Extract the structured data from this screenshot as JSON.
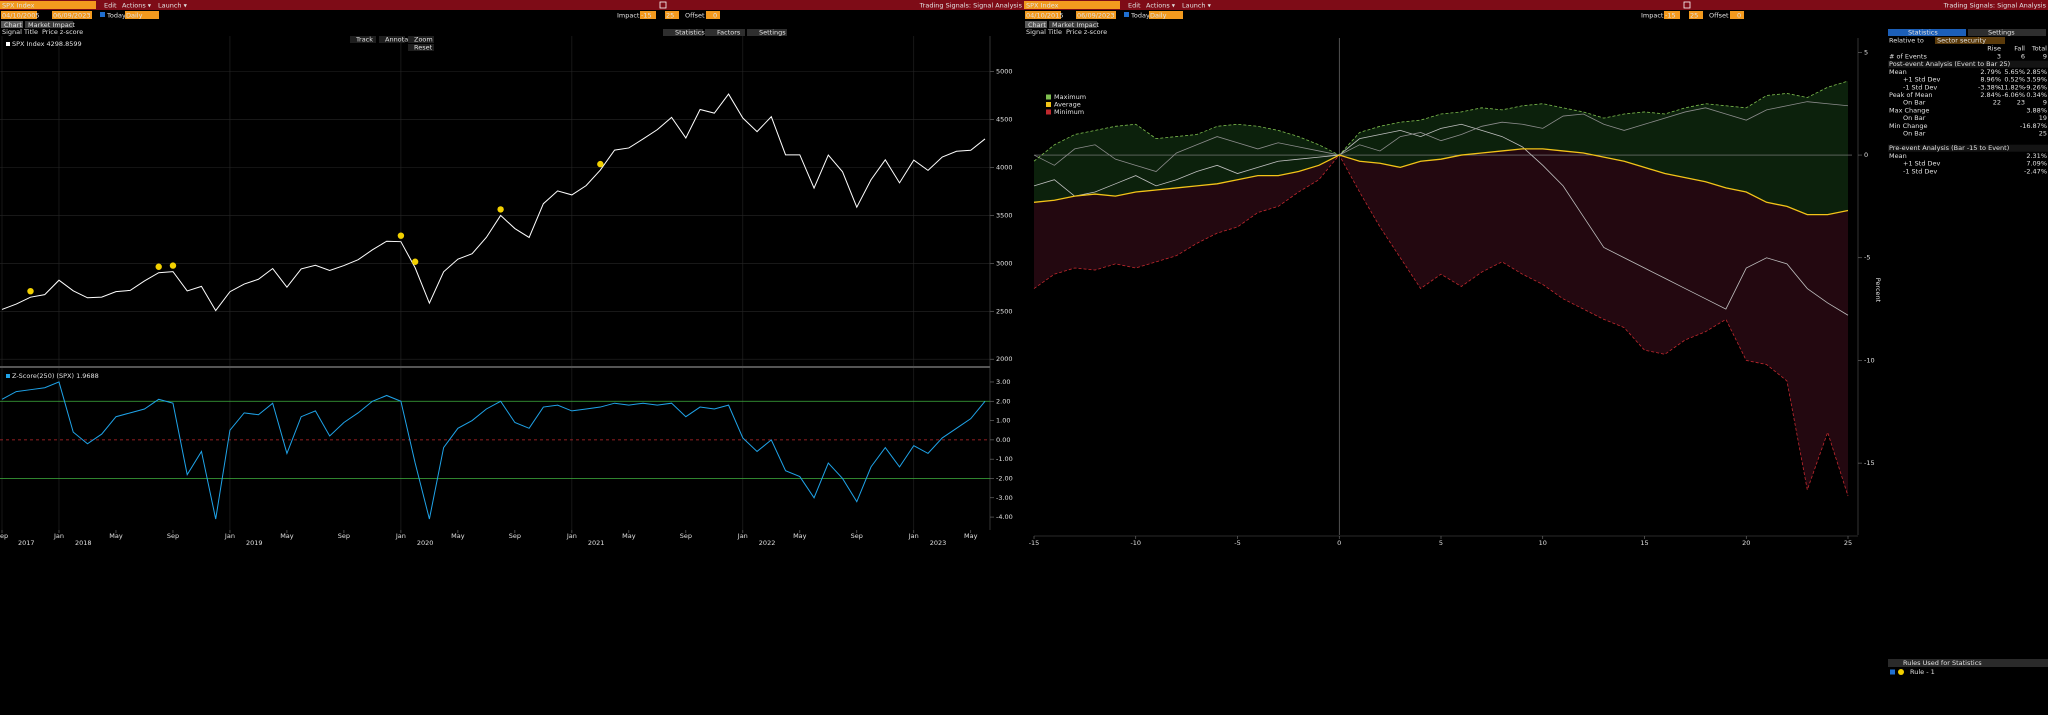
{
  "left": {
    "toolbar": {
      "security": "SPX Index",
      "menus": [
        "Edit",
        "Actions ▾",
        "Launch ▾"
      ],
      "app_title": "Trading Signals: Signal Analysis"
    },
    "controls": {
      "start": "04/10/2005",
      "end": "06/09/2023",
      "today": "Today",
      "frequency": "Daily",
      "impact_label": "Impact",
      "impact_from": "-15",
      "impact_to": "25",
      "offset_label": "Offset",
      "offset": "0"
    },
    "tabs": [
      "Chart",
      "Market Impact"
    ],
    "signal_title_label": "Signal Title",
    "signal_title": "Price z-score",
    "tool_tabs": [
      "Statistics",
      "Factors",
      "Settings"
    ],
    "chart_tools": [
      "Track",
      "Annotate",
      "Zoom",
      "Reset"
    ],
    "price_chart": {
      "type": "line",
      "legend": "SPX Index 4298.8599",
      "color": "#ffffff",
      "grid": true,
      "categories": [
        "Sep",
        null,
        null,
        null,
        "Jan",
        null,
        null,
        null,
        "May",
        null,
        null,
        null,
        "Sep",
        null,
        null,
        null,
        "Jan",
        null,
        null,
        null,
        "May",
        null,
        null,
        null,
        "Sep",
        null,
        null,
        null,
        "Jan",
        null,
        null,
        null,
        "May",
        null,
        null,
        null,
        "Sep",
        null,
        null,
        null,
        "Jan",
        null,
        null,
        null,
        "May",
        null,
        null,
        null,
        "Sep",
        null,
        null,
        null,
        "Jan",
        null,
        null,
        null,
        "May",
        null,
        null,
        null,
        "Sep",
        null,
        null,
        null,
        "Jan",
        null,
        null,
        null,
        "May",
        null
      ],
      "year_ticks": [
        {
          "value": 0,
          "label": "2017"
        },
        {
          "value": 4,
          "label": "2018"
        },
        {
          "value": 16,
          "label": "2019"
        },
        {
          "value": 28,
          "label": "2020"
        },
        {
          "value": 40,
          "label": "2021"
        },
        {
          "value": 52,
          "label": "2022"
        },
        {
          "value": 64,
          "label": "2023"
        }
      ],
      "values": [
        2519,
        2575,
        2647,
        2674,
        2824,
        2714,
        2641,
        2648,
        2705,
        2718,
        2816,
        2902,
        2914,
        2712,
        2760,
        2507,
        2704,
        2784,
        2834,
        2946,
        2752,
        2942,
        2980,
        2926,
        2977,
        3038,
        3141,
        3231,
        3226,
        2954,
        2585,
        2912,
        3044,
        3100,
        3271,
        3500,
        3363,
        3270,
        3622,
        3756,
        3714,
        3811,
        3973,
        4181,
        4204,
        4298,
        4395,
        4523,
        4308,
        4605,
        4567,
        4766,
        4516,
        4374,
        4530,
        4132,
        4132,
        3785,
        4130,
        3955,
        3586,
        3872,
        4080,
        3840,
        4077,
        3970,
        4109,
        4169,
        4180,
        4298
      ],
      "event_indices": [
        2,
        11,
        12,
        28,
        29,
        35,
        42
      ],
      "event_color": "#f2d000",
      "ylim": [
        1950,
        5330
      ],
      "yticks": [
        2000,
        2500,
        3000,
        3500,
        4000,
        4500,
        5000
      ]
    },
    "zscore_chart": {
      "type": "line",
      "legend": "Z-Score(250) (SPX) 1.9688",
      "color": "#1fa3e8",
      "values": [
        2.1,
        2.5,
        2.6,
        2.7,
        3.0,
        0.4,
        -0.2,
        0.3,
        1.2,
        1.4,
        1.6,
        2.1,
        1.9,
        -1.8,
        -0.6,
        -4.1,
        0.5,
        1.4,
        1.3,
        1.9,
        -0.7,
        1.2,
        1.5,
        0.2,
        0.9,
        1.4,
        2.0,
        2.3,
        2.0,
        -1.2,
        -4.1,
        -0.4,
        0.6,
        1.0,
        1.6,
        2.0,
        0.9,
        0.6,
        1.7,
        1.8,
        1.5,
        1.6,
        1.7,
        1.9,
        1.8,
        1.9,
        1.8,
        1.9,
        1.2,
        1.7,
        1.6,
        1.8,
        0.1,
        -0.6,
        0.0,
        -1.6,
        -1.9,
        -3.0,
        -1.2,
        -2.0,
        -3.2,
        -1.4,
        -0.4,
        -1.4,
        -0.3,
        -0.7,
        0.1,
        0.6,
        1.1,
        2.0
      ],
      "bands": [
        2,
        -2
      ],
      "band_color": "#3fb03f",
      "center_line": 0,
      "center_color": "#c0282d",
      "ylim": [
        -4.67,
        3.62
      ],
      "yticks": [
        {
          "value": 3,
          "label": "3.00"
        },
        {
          "value": 2,
          "label": "2.00"
        },
        {
          "value": 1,
          "label": "1.00"
        },
        {
          "value": 0,
          "label": "0.00"
        },
        {
          "value": -1,
          "label": "-1.00"
        },
        {
          "value": -2,
          "label": "-2.00"
        },
        {
          "value": -3,
          "label": "-3.00"
        },
        {
          "value": -4,
          "label": "-4.00"
        }
      ]
    }
  },
  "right": {
    "toolbar": {
      "security": "SPX Index",
      "menus": [
        "Edit",
        "Actions ▾",
        "Launch ▾"
      ],
      "app_title": "Trading Signals: Signal Analysis"
    },
    "controls": {
      "start": "04/10/2015",
      "end": "06/09/2023",
      "today": "Today",
      "frequency": "Daily",
      "impact_label": "Impact",
      "impact_from": "-15",
      "impact_to": "25",
      "offset_label": "Offset",
      "offset": "0"
    },
    "tabs": [
      "Chart",
      "Market Impact"
    ],
    "signal_title_label": "Signal Title",
    "signal_title": "Price z-score",
    "event_chart": {
      "type": "line",
      "x": [
        -15,
        -14,
        -13,
        -12,
        -11,
        -10,
        -9,
        -8,
        -7,
        -6,
        -5,
        -4,
        -3,
        -2,
        -1,
        0,
        1,
        2,
        3,
        4,
        5,
        6,
        7,
        8,
        9,
        10,
        11,
        12,
        13,
        14,
        15,
        16,
        17,
        18,
        19,
        20,
        21,
        22,
        23,
        24,
        25
      ],
      "xlim": [
        -15,
        25
      ],
      "xticks": [
        -15,
        -10,
        -5,
        0,
        5,
        10,
        15,
        20,
        25
      ],
      "ylim": [
        -18.5,
        5.7
      ],
      "yticks": [
        5,
        0,
        -5,
        -10,
        -15
      ],
      "y_label": "Percent",
      "upper_fill": "#0c210c",
      "lower_fill": "#230810",
      "series": [
        {
          "name": "Maximum",
          "color": "#7fbf4f",
          "dashed": true,
          "values": [
            -0.3,
            0.5,
            1,
            1.2,
            1.4,
            1.5,
            0.8,
            0.9,
            1,
            1.4,
            1.5,
            1.4,
            1.2,
            0.9,
            0.5,
            0,
            1.1,
            1.4,
            1.6,
            1.7,
            2,
            2.1,
            2.3,
            2.2,
            2.4,
            2.5,
            2.3,
            2.1,
            1.8,
            2,
            2.1,
            2,
            2.3,
            2.5,
            2.4,
            2.3,
            2.9,
            3,
            2.8,
            3.3,
            3.6
          ]
        },
        {
          "name": "Average",
          "color": "#f2c318",
          "dashed": false,
          "values": [
            -2.3,
            -2.2,
            -2,
            -1.9,
            -2,
            -1.8,
            -1.7,
            -1.6,
            -1.5,
            -1.4,
            -1.2,
            -1,
            -1,
            -0.8,
            -0.5,
            0,
            -0.3,
            -0.4,
            -0.6,
            -0.3,
            -0.2,
            0,
            0.1,
            0.2,
            0.3,
            0.3,
            0.2,
            0.1,
            -0.1,
            -0.3,
            -0.6,
            -0.9,
            -1.1,
            -1.3,
            -1.6,
            -1.8,
            -2.3,
            -2.5,
            -2.9,
            -2.9,
            -2.7
          ]
        },
        {
          "name": "Minimum",
          "color": "#c0282d",
          "dashed": true,
          "values": [
            -6.5,
            -5.8,
            -5.5,
            -5.6,
            -5.3,
            -5.5,
            -5.2,
            -4.9,
            -4.3,
            -3.8,
            -3.5,
            -2.8,
            -2.5,
            -1.8,
            -1.2,
            0,
            -1.8,
            -3.5,
            -5,
            -6.5,
            -5.8,
            -6.4,
            -5.7,
            -5.2,
            -5.8,
            -6.3,
            -7,
            -7.5,
            -8,
            -8.4,
            -9.5,
            -9.7,
            -9,
            -8.6,
            -8,
            -10,
            -10.2,
            -11,
            -16.3,
            -13.5,
            -16.6
          ]
        },
        {
          "color": "#bfbfbf",
          "dashed": false,
          "values": [
            -1.5,
            -1.2,
            -2,
            -1.8,
            -1.4,
            -1,
            -1.5,
            -1.2,
            -0.8,
            -0.5,
            -0.9,
            -0.6,
            -0.3,
            -0.2,
            -0.1,
            0,
            0.8,
            1,
            1.2,
            0.9,
            1.3,
            1.5,
            1.2,
            0.9,
            0.4,
            -0.5,
            -1.5,
            -3,
            -4.5,
            -5,
            -5.5,
            -6,
            -6.5,
            -7,
            -7.5,
            -5.5,
            -5,
            -5.3,
            -6.5,
            -7.2,
            -7.8
          ]
        },
        {
          "color": "#8c8c8c",
          "dashed": false,
          "values": [
            0,
            -0.5,
            0.3,
            0.5,
            -0.2,
            -0.5,
            -0.8,
            0.1,
            0.5,
            0.9,
            0.6,
            0.3,
            0.6,
            0.4,
            0.2,
            0,
            0.5,
            0.2,
            0.9,
            1.1,
            0.7,
            1,
            1.4,
            1.6,
            1.5,
            1.3,
            1.9,
            2,
            1.5,
            1.2,
            1.5,
            1.8,
            2.1,
            2.3,
            2,
            1.7,
            2.2,
            2.4,
            2.6,
            2.5,
            2.4
          ]
        }
      ]
    },
    "stats": {
      "tabs": [
        "Statistics",
        "Settings"
      ],
      "relative_to_label": "Relative to",
      "relative_to": "Sector security",
      "columns": [
        "Rise",
        "Fall",
        "Total"
      ],
      "rows": [
        [
          "# of Events",
          "3",
          "6",
          "9"
        ],
        [
          "Post-event Analysis (Event to Bar 25)"
        ],
        [
          "Mean",
          "2.79%",
          "5.65%",
          "2.85%"
        ],
        [
          "+1 Std Dev",
          "8.96%",
          "0.52%",
          "3.59%"
        ],
        [
          "-1 Std Dev",
          "-3.38%",
          "-11.82%",
          "-9.26%"
        ],
        [
          "Peak of Mean",
          "2.84%",
          "-6.06%",
          "0.34%"
        ],
        [
          "On Bar",
          "22",
          "23",
          "9"
        ],
        [
          "Max Change",
          null,
          null,
          "3.88%"
        ],
        [
          "On Bar",
          null,
          null,
          "19"
        ],
        [
          "Min Change",
          null,
          null,
          "-16.87%"
        ],
        [
          "On Bar",
          null,
          null,
          "25"
        ],
        [
          "Pre-event Analysis (Bar -15 to Event)"
        ],
        [
          "Mean",
          null,
          null,
          "2.31%"
        ],
        [
          "+1 Std Dev",
          null,
          null,
          "7.09%"
        ],
        [
          "-1 Std Dev",
          null,
          null,
          "-2.47%"
        ]
      ],
      "rules_title": "Rules Used for Statistics",
      "rules": [
        "Rule - 1"
      ]
    }
  }
}
